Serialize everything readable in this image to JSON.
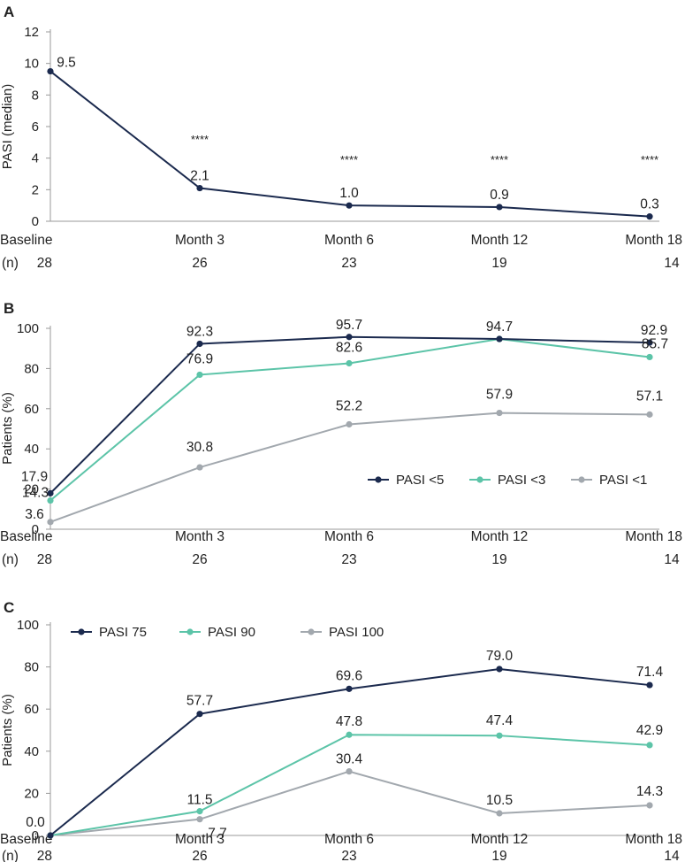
{
  "chart_data": [
    {
      "panel": "A",
      "type": "line",
      "ylabel": "PASI (median)",
      "ylim": [
        0,
        12
      ],
      "yticks": [
        0,
        2,
        4,
        6,
        8,
        10,
        12
      ],
      "categories": [
        "Baseline",
        "Month 3",
        "Month 6",
        "Month 12",
        "Month 18"
      ],
      "n_label": "(n)",
      "n": [
        "28",
        "26",
        "23",
        "19",
        "14"
      ],
      "grid": false,
      "legend": "none",
      "series": [
        {
          "values": [
            9.5,
            2.1,
            1.0,
            0.9,
            0.3
          ],
          "labels": [
            "9.5",
            "2.1",
            "1.0",
            "0.9",
            "0.3"
          ],
          "color": "#1b2a4e"
        }
      ],
      "significance": [
        "",
        "****",
        "****",
        "****",
        "****"
      ]
    },
    {
      "panel": "B",
      "type": "line",
      "ylabel": "Patients (%)",
      "ylim": [
        0,
        100
      ],
      "yticks": [
        0,
        20,
        40,
        60,
        80,
        100
      ],
      "categories": [
        "Baseline",
        "Month 3",
        "Month 6",
        "Month 12",
        "Month 18"
      ],
      "n_label": "(n)",
      "n": [
        "28",
        "26",
        "23",
        "19",
        "14"
      ],
      "grid": false,
      "legend": "inside-lower-right",
      "series": [
        {
          "name": "PASI <5",
          "values": [
            17.9,
            92.3,
            95.7,
            94.7,
            92.9
          ],
          "labels": [
            "17.9",
            "92.3",
            "95.7",
            "94.7",
            "92.9"
          ],
          "color": "#1b2a4e"
        },
        {
          "name": "PASI <3",
          "values": [
            14.3,
            76.9,
            82.6,
            94.7,
            85.7
          ],
          "labels": [
            "14.3",
            "76.9",
            "82.6",
            "",
            "85.7"
          ],
          "color": "#5cc4a8"
        },
        {
          "name": "PASI <1",
          "values": [
            3.6,
            30.8,
            52.2,
            57.9,
            57.1
          ],
          "labels": [
            "3.6",
            "30.8",
            "52.2",
            "57.9",
            "57.1"
          ],
          "color": "#a2a8ae"
        }
      ]
    },
    {
      "panel": "C",
      "type": "line",
      "ylabel": "Patients (%)",
      "ylim": [
        0,
        100
      ],
      "yticks": [
        0,
        20,
        40,
        60,
        80,
        100
      ],
      "categories": [
        "Baseline",
        "Month 3",
        "Month 6",
        "Month 12",
        "Month 18"
      ],
      "n_label": "(n)",
      "n": [
        "28",
        "26",
        "23",
        "19",
        "14"
      ],
      "grid": false,
      "legend": "inside-top-left",
      "series": [
        {
          "name": "PASI 75",
          "values": [
            0.0,
            57.7,
            69.6,
            79.0,
            71.4
          ],
          "labels": [
            "0.0",
            "57.7",
            "69.6",
            "79.0",
            "71.4"
          ],
          "color": "#1b2a4e"
        },
        {
          "name": "PASI 90",
          "values": [
            0.0,
            11.5,
            47.8,
            47.4,
            42.9
          ],
          "labels": [
            "",
            "11.5",
            "47.8",
            "47.4",
            "42.9"
          ],
          "color": "#5cc4a8"
        },
        {
          "name": "PASI 100",
          "values": [
            0.0,
            7.7,
            30.4,
            10.5,
            14.3
          ],
          "labels": [
            "",
            "7.7",
            "30.4",
            "10.5",
            "14.3"
          ],
          "color": "#a2a8ae"
        }
      ]
    }
  ]
}
